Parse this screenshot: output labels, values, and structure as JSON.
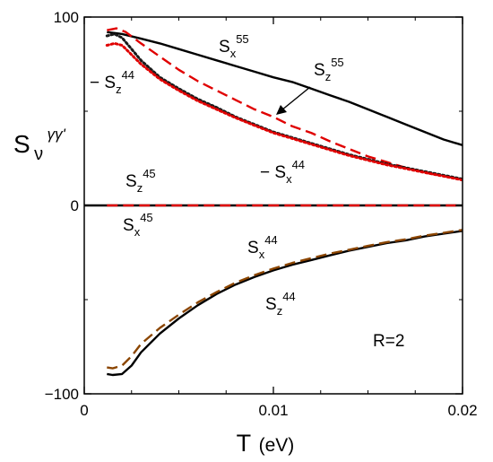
{
  "chart_data": {
    "type": "line",
    "xlabel_main": "T",
    "xlabel_unit": "(eV)",
    "ylabel_main": "S",
    "ylabel_sub": "ν",
    "ylabel_sup": "γγ'",
    "xlim": [
      0,
      0.02
    ],
    "ylim": [
      -100,
      100
    ],
    "x_ticks": [
      0,
      0.01,
      0.02
    ],
    "x_tick_labels": [
      "0",
      "0.01",
      "0.02"
    ],
    "y_ticks": [
      -100,
      0,
      100
    ],
    "y_tick_labels": [
      "−100",
      "0",
      "100"
    ],
    "grid": false,
    "series": [
      {
        "name": "S_x^55",
        "color": "#000000",
        "style": "solid",
        "x": [
          0.0012,
          0.002,
          0.003,
          0.004,
          0.005,
          0.006,
          0.007,
          0.008,
          0.009,
          0.01,
          0.011,
          0.012,
          0.013,
          0.014,
          0.015,
          0.016,
          0.017,
          0.018,
          0.019,
          0.02
        ],
        "y": [
          92,
          91,
          88.5,
          86,
          83,
          80,
          77,
          74,
          71,
          68,
          65.5,
          62,
          58.5,
          55,
          51,
          47,
          43,
          39,
          35,
          32
        ]
      },
      {
        "name": "S_z^55",
        "color": "#e00000",
        "style": "dashed",
        "x": [
          0.0012,
          0.0017,
          0.0022,
          0.003,
          0.004,
          0.005,
          0.006,
          0.007,
          0.008,
          0.009,
          0.01,
          0.011,
          0.012,
          0.013,
          0.014,
          0.015,
          0.016,
          0.017,
          0.018,
          0.019,
          0.02
        ],
        "y": [
          93,
          94,
          92,
          86,
          79,
          72,
          66,
          61,
          56,
          51,
          47,
          42,
          38.5,
          34,
          30,
          26,
          23,
          20,
          17.5,
          15.5,
          14
        ]
      },
      {
        "name": "−S_x^44",
        "color": "#1a1a1a",
        "style": "dotted",
        "x": [
          0.0012,
          0.0016,
          0.002,
          0.0025,
          0.003,
          0.004,
          0.005,
          0.006,
          0.007,
          0.008,
          0.009,
          0.01,
          0.011,
          0.012,
          0.013,
          0.014,
          0.015,
          0.016,
          0.017,
          0.018,
          0.019,
          0.02
        ],
        "y": [
          90,
          91,
          89,
          83,
          77,
          68,
          62,
          56.5,
          52,
          47,
          43,
          39,
          36,
          33,
          30,
          27,
          24.5,
          22,
          20,
          18,
          16,
          14
        ]
      },
      {
        "name": "−S_z^44",
        "color": "#e00000",
        "style": "dotted",
        "x": [
          0.0012,
          0.0016,
          0.002,
          0.0025,
          0.003,
          0.004,
          0.005,
          0.006,
          0.007,
          0.008,
          0.009,
          0.01,
          0.011,
          0.012,
          0.013,
          0.014,
          0.015,
          0.016,
          0.017,
          0.018,
          0.019,
          0.02
        ],
        "y": [
          85,
          86,
          85,
          80,
          75,
          67,
          61,
          55.5,
          51,
          46.5,
          42.5,
          38.5,
          35.5,
          32.5,
          29.5,
          26.5,
          24,
          21.5,
          19.5,
          17.5,
          15.5,
          13.5
        ]
      },
      {
        "name": "S_x^44",
        "color": "#000000",
        "style": "solid",
        "x": [
          0.0012,
          0.0015,
          0.002,
          0.0025,
          0.003,
          0.004,
          0.005,
          0.006,
          0.007,
          0.008,
          0.009,
          0.01,
          0.011,
          0.012,
          0.013,
          0.014,
          0.015,
          0.016,
          0.017,
          0.018,
          0.019,
          0.02
        ],
        "y": [
          -89.5,
          -90,
          -89.5,
          -85,
          -78,
          -68,
          -60,
          -53,
          -47,
          -42,
          -38,
          -34.5,
          -31.5,
          -29,
          -26.5,
          -24,
          -22,
          -20,
          -18.5,
          -16.5,
          -15,
          -13.5
        ]
      },
      {
        "name": "S_z^44",
        "color": "#8b4500",
        "style": "dashed",
        "x": [
          0.0012,
          0.0015,
          0.002,
          0.0025,
          0.003,
          0.004,
          0.005,
          0.006,
          0.007,
          0.008,
          0.009,
          0.01,
          0.011,
          0.012,
          0.013,
          0.014,
          0.015,
          0.016,
          0.017,
          0.018,
          0.019,
          0.02
        ],
        "y": [
          -86,
          -86.5,
          -85,
          -80,
          -73.5,
          -65,
          -58,
          -51.5,
          -46,
          -41,
          -37,
          -33.5,
          -30.5,
          -28,
          -25.5,
          -23.5,
          -21.5,
          -19.5,
          -18,
          -16,
          -14.5,
          -13
        ]
      },
      {
        "name": "S_x^45",
        "color": "#000000",
        "style": "solid",
        "x": [
          0,
          0.02
        ],
        "y": [
          0,
          0
        ]
      },
      {
        "name": "S_z^45",
        "color": "#e00000",
        "style": "dashed",
        "x": [
          0.0012,
          0.02
        ],
        "y": [
          0,
          0
        ]
      }
    ],
    "annotations": [
      {
        "id": "sx55",
        "base": "S",
        "sub": "x",
        "sup": "55",
        "prefix": ""
      },
      {
        "id": "sz55",
        "base": "S",
        "sub": "z",
        "sup": "55",
        "prefix": ""
      },
      {
        "id": "msz44",
        "base": "S",
        "sub": "z",
        "sup": "44",
        "prefix": "− "
      },
      {
        "id": "msx44",
        "base": "S",
        "sub": "x",
        "sup": "44",
        "prefix": "− "
      },
      {
        "id": "sz45",
        "base": "S",
        "sub": "z",
        "sup": "45",
        "prefix": ""
      },
      {
        "id": "sx45",
        "base": "S",
        "sub": "x",
        "sup": "45",
        "prefix": ""
      },
      {
        "id": "sx44",
        "base": "S",
        "sub": "x",
        "sup": "44",
        "prefix": ""
      },
      {
        "id": "sz44",
        "base": "S",
        "sub": "z",
        "sup": "44",
        "prefix": ""
      }
    ],
    "r_label": "R=2"
  }
}
